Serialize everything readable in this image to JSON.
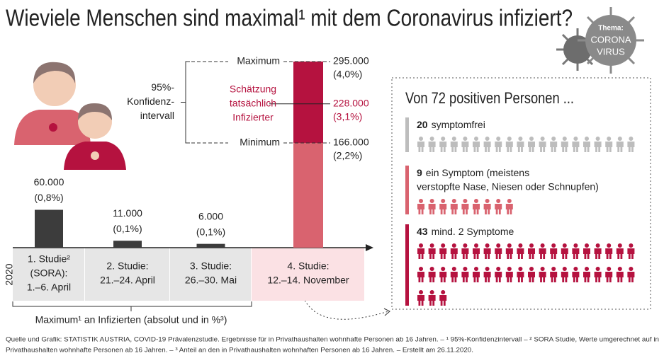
{
  "title": "Wieviele Menschen sind maximal¹ mit dem Coronavirus infiziert?",
  "badge": {
    "lines": [
      "Thema:",
      "CORONA",
      "VIRUS"
    ]
  },
  "chart_data": {
    "type": "bar",
    "categories": [
      [
        "1. Studie²",
        "(SORA):",
        "1.–6. April"
      ],
      [
        "2. Studie:",
        "21.–24. April"
      ],
      [
        "3. Studie:",
        "26.–30. Mai"
      ],
      [
        "4. Studie:",
        "12.–14. November"
      ]
    ],
    "year": "2020",
    "values": [
      60000,
      11000,
      6000,
      295000
    ],
    "value_labels": [
      "60.000",
      "11.000",
      "6.000",
      "295.000"
    ],
    "shares": [
      0.8,
      0.1,
      0.1,
      4.0
    ],
    "share_labels": [
      "(0,8%)",
      "(0,1%)",
      "(0,1%)",
      "(4,0%)"
    ],
    "ylim": [
      0,
      300000
    ],
    "color": "#3c3c3c",
    "axis_label": "Maximum¹ an Infizierten (absolut und in %³)",
    "interval": {
      "label": [
        "95%-",
        "Konfidenz-",
        "intervall"
      ],
      "max_name": "Maximum",
      "min_name": "Minimum",
      "estimate_name": [
        "Schätzung",
        "tatsächlich",
        "Infizierter"
      ],
      "estimate": 228000,
      "estimate_label": "228.000",
      "estimate_share": 3.1,
      "estimate_share_label": "(3,1%)",
      "min": 166000,
      "min_label": "166.000",
      "min_share": 2.2,
      "min_share_label": "(2,2%)",
      "upper_color": "#b5123f",
      "lower_color": "#d9636f",
      "estimate_color": "#b5123f"
    }
  },
  "pictogram": {
    "title": "Von 72 positiven Personen ...",
    "groups": [
      {
        "count": 20,
        "label": [
          "symptomfrei"
        ],
        "color": "#bdbdbd"
      },
      {
        "count": 9,
        "label": [
          "ein Symptom (meistens",
          "verstopfte Nase, Niesen oder Schnupfen)"
        ],
        "color": "#d9636f"
      },
      {
        "count": 43,
        "label": [
          "mind. 2 Symptome"
        ],
        "color": "#b5123f"
      }
    ]
  },
  "footnote": [
    "Quelle und Grafik: STATISTIK AUSTRIA, COVID-19 Prävalenzstudie. Ergebnisse für in Privathaushalten wohnhafte Personen ab 16 Jahren. – ¹ 95%-Konfidenzintervall – ² SORA Studie, Werte umgerechnet auf in",
    "Privathaushalten wohnhafte Personen ab 16 Jahren. – ³ Anteil an den in Privathaushalten wohnhaften Personen ab 16 Jahren. – Erstellt am 26.11.2020."
  ]
}
